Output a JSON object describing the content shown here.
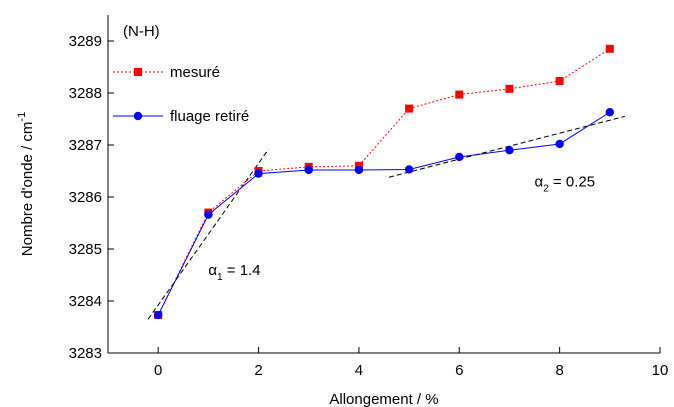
{
  "chart_data": {
    "type": "line",
    "annotation": "(N-H)",
    "x_label": "Allongement  /  %",
    "y_label": {
      "text": "Nombre d'onde  /  cm",
      "sup": "-1"
    },
    "x": [
      0,
      1,
      2,
      3,
      4,
      5,
      6,
      7,
      8,
      9
    ],
    "series": [
      {
        "name": "mesuré",
        "color": "#ff0000",
        "marker": "square",
        "line": "dotted",
        "values": [
          3283.73,
          3285.7,
          3286.5,
          3286.58,
          3286.6,
          3287.7,
          3287.97,
          3288.08,
          3288.23,
          3288.85
        ]
      },
      {
        "name": "fluage retiré",
        "color": "#0000ff",
        "marker": "circle",
        "line": "solid",
        "values": [
          3283.73,
          3285.66,
          3286.45,
          3286.52,
          3286.52,
          3286.53,
          3286.77,
          3286.9,
          3287.02,
          3287.63
        ]
      }
    ],
    "fits": [
      {
        "x": [
          -0.2,
          2.2
        ],
        "values": [
          3283.65,
          3286.92
        ],
        "label": {
          "text": "α",
          "sub": "1",
          "rest": " = 1.4"
        },
        "label_at": [
          1,
          3284.5
        ]
      },
      {
        "x": [
          4.6,
          9.3
        ],
        "values": [
          3286.38,
          3287.55
        ],
        "label": {
          "text": "α",
          "sub": "2",
          "rest": " = 0.25"
        },
        "label_at": [
          7.5,
          3286.2
        ]
      }
    ],
    "xlim": [
      -1,
      10
    ],
    "xticks": [
      0,
      2,
      4,
      6,
      8,
      10
    ],
    "ylim": [
      3283,
      3289.5
    ],
    "yticks": [
      3283,
      3284,
      3285,
      3286,
      3287,
      3288,
      3289
    ],
    "legend": "upper left"
  }
}
